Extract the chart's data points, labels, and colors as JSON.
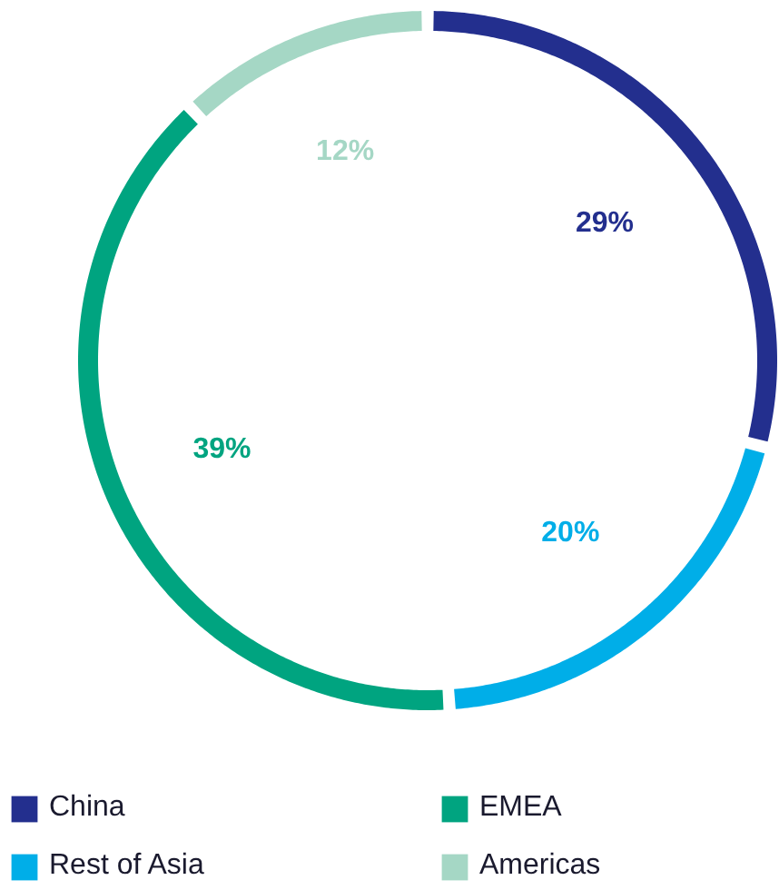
{
  "chart_data": {
    "type": "donut",
    "categories": [
      "China",
      "Rest of Asia",
      "EMEA",
      "Americas"
    ],
    "values": [
      29,
      20,
      39,
      12
    ],
    "colors": [
      "#232f8e",
      "#00aee8",
      "#00a480",
      "#a5d7c5"
    ],
    "value_labels": [
      "29%",
      "20%",
      "39%",
      "12%"
    ],
    "legend": "bottom"
  }
}
